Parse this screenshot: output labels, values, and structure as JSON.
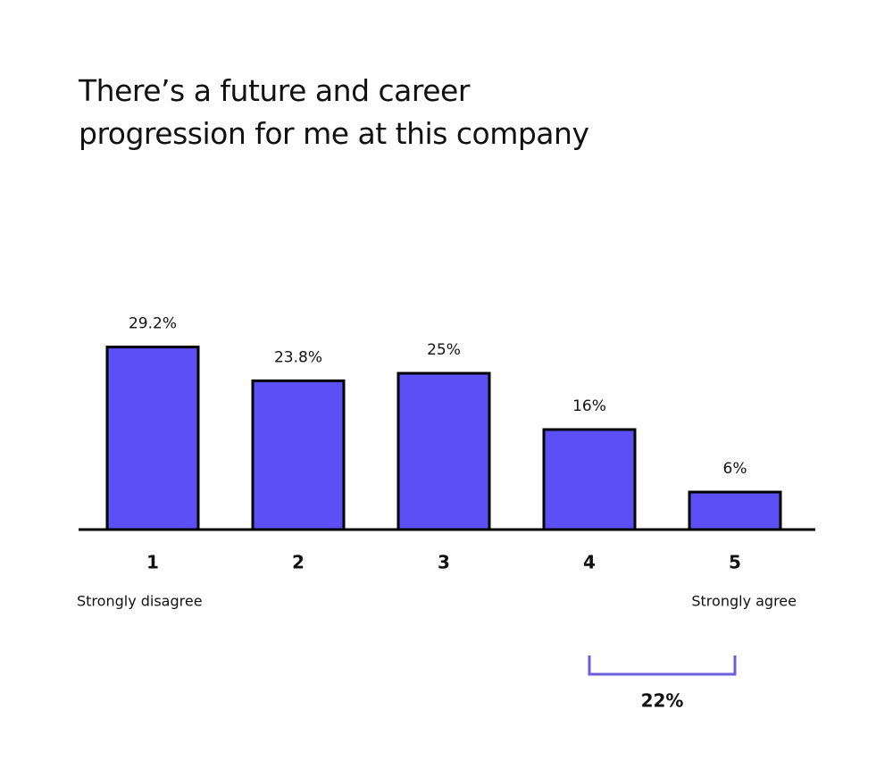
{
  "chart_data": {
    "type": "bar",
    "title": "There’s a future and career progression for me at this company",
    "categories": [
      "1",
      "2",
      "3",
      "4",
      "5"
    ],
    "values": [
      29.2,
      23.8,
      25,
      16,
      6
    ],
    "value_labels": [
      "29.2%",
      "23.8%",
      "25%",
      "16%",
      "6%"
    ],
    "color": "#5b4ff5",
    "annotations": {
      "scale_low": "Strongly disagree",
      "scale_high": "Strongly agree",
      "bracket": {
        "value": 22,
        "label": "22%",
        "color": "#6a5fd8"
      }
    }
  }
}
